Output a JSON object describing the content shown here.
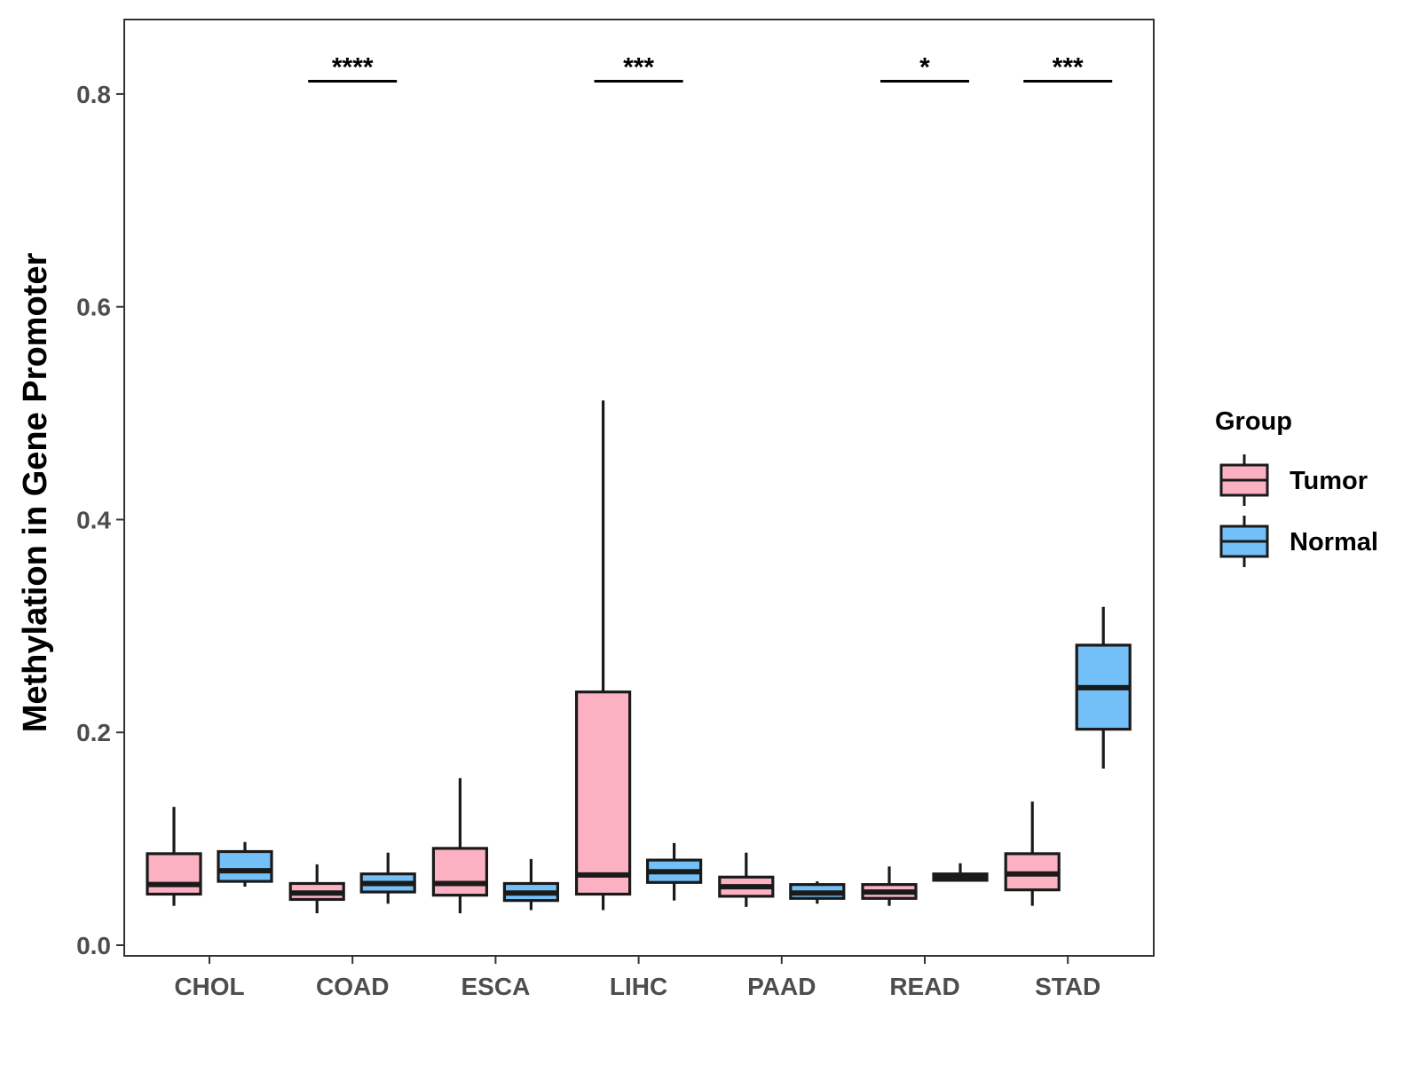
{
  "chart_data": {
    "type": "boxplot",
    "title": "",
    "xlabel": "",
    "ylabel": "Methylation in Gene Promoter",
    "ylim": [
      -0.01,
      0.87
    ],
    "yticks": [
      "0.0",
      "0.2",
      "0.4",
      "0.6",
      "0.8"
    ],
    "ytick_values": [
      0.0,
      0.2,
      0.4,
      0.6,
      0.8
    ],
    "grid": false,
    "categories": [
      "CHOL",
      "COAD",
      "ESCA",
      "LIHC",
      "PAAD",
      "READ",
      "STAD"
    ],
    "legend": {
      "title": "Group",
      "position": "right",
      "entries": [
        {
          "name": "Tumor",
          "color": "#fbb1c2"
        },
        {
          "name": "Normal",
          "color": "#73bff7"
        }
      ]
    },
    "series": [
      {
        "name": "Tumor",
        "color": "#fbb1c2",
        "boxes": [
          {
            "min": 0.037,
            "q1": 0.048,
            "median": 0.057,
            "q3": 0.086,
            "max": 0.13
          },
          {
            "min": 0.03,
            "q1": 0.043,
            "median": 0.049,
            "q3": 0.058,
            "max": 0.076
          },
          {
            "min": 0.03,
            "q1": 0.047,
            "median": 0.058,
            "q3": 0.091,
            "max": 0.157
          },
          {
            "min": 0.033,
            "q1": 0.048,
            "median": 0.066,
            "q3": 0.238,
            "max": 0.512
          },
          {
            "min": 0.036,
            "q1": 0.046,
            "median": 0.055,
            "q3": 0.064,
            "max": 0.087
          },
          {
            "min": 0.037,
            "q1": 0.044,
            "median": 0.05,
            "q3": 0.057,
            "max": 0.074
          },
          {
            "min": 0.037,
            "q1": 0.052,
            "median": 0.067,
            "q3": 0.086,
            "max": 0.135
          }
        ]
      },
      {
        "name": "Normal",
        "color": "#73bff7",
        "boxes": [
          {
            "min": 0.055,
            "q1": 0.06,
            "median": 0.07,
            "q3": 0.088,
            "max": 0.097
          },
          {
            "min": 0.039,
            "q1": 0.05,
            "median": 0.058,
            "q3": 0.067,
            "max": 0.087
          },
          {
            "min": 0.033,
            "q1": 0.042,
            "median": 0.049,
            "q3": 0.058,
            "max": 0.081
          },
          {
            "min": 0.042,
            "q1": 0.059,
            "median": 0.069,
            "q3": 0.08,
            "max": 0.096
          },
          {
            "min": 0.039,
            "q1": 0.044,
            "median": 0.049,
            "q3": 0.057,
            "max": 0.06
          },
          {
            "min": 0.06,
            "q1": 0.061,
            "median": 0.064,
            "q3": 0.067,
            "max": 0.077
          },
          {
            "min": 0.166,
            "q1": 0.203,
            "median": 0.242,
            "q3": 0.282,
            "max": 0.318
          }
        ]
      }
    ],
    "significance": [
      {
        "category": "COAD",
        "label": "****",
        "y": 0.812
      },
      {
        "category": "LIHC",
        "label": "***",
        "y": 0.812
      },
      {
        "category": "READ",
        "label": "*",
        "y": 0.812
      },
      {
        "category": "STAD",
        "label": "***",
        "y": 0.812
      }
    ]
  }
}
